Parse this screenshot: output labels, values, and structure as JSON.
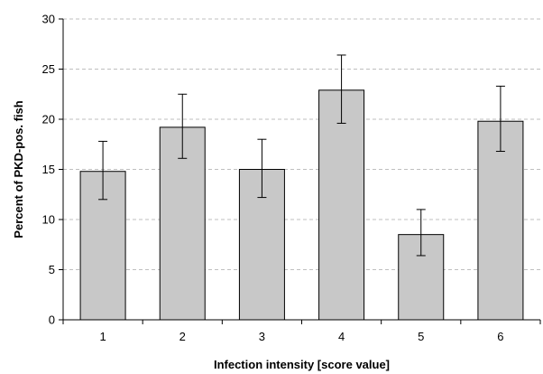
{
  "chart_data": {
    "type": "bar",
    "title": "",
    "xlabel": "Infection intensity [score value]",
    "ylabel": "Percent of PKD-pos. fish",
    "categories": [
      "1",
      "2",
      "3",
      "4",
      "5",
      "6"
    ],
    "values": [
      14.8,
      19.2,
      15.0,
      22.9,
      8.5,
      19.8
    ],
    "error_low": [
      12.0,
      16.1,
      12.2,
      19.6,
      6.4,
      16.8
    ],
    "error_high": [
      17.8,
      22.5,
      18.0,
      26.4,
      11.0,
      23.3
    ],
    "ylim": [
      0,
      30
    ],
    "yticks": [
      0,
      5,
      10,
      15,
      20,
      25,
      30
    ],
    "grid": true,
    "legend": "none",
    "bar_color": "#c8c8c8",
    "grid_color": "#bfbfbf"
  }
}
